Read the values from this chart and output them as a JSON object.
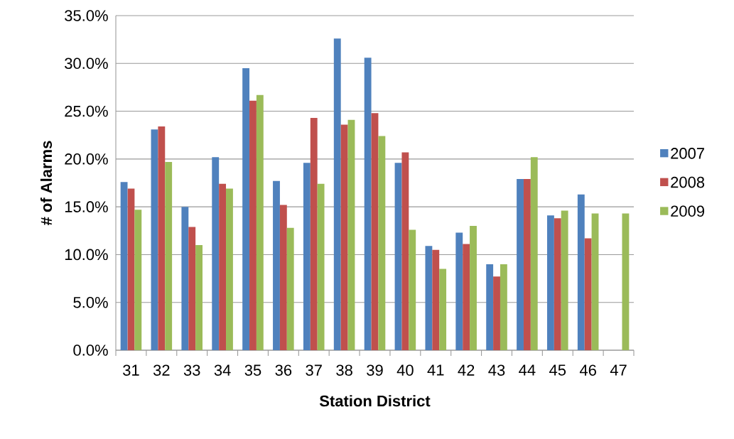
{
  "chart_data": {
    "type": "bar",
    "xlabel": "Station District",
    "ylabel": "# of Alarms",
    "categories": [
      "31",
      "32",
      "33",
      "34",
      "35",
      "36",
      "37",
      "38",
      "39",
      "40",
      "41",
      "42",
      "43",
      "44",
      "45",
      "46",
      "47"
    ],
    "series": [
      {
        "name": "2007",
        "color": "#4f81bd",
        "values": [
          17.6,
          23.1,
          15.0,
          20.2,
          29.5,
          17.7,
          19.6,
          32.6,
          30.6,
          19.6,
          10.9,
          12.3,
          9.0,
          17.9,
          14.1,
          16.3,
          null
        ]
      },
      {
        "name": "2008",
        "color": "#c0504d",
        "values": [
          16.9,
          23.4,
          12.9,
          17.4,
          26.1,
          15.2,
          24.3,
          23.6,
          24.8,
          20.7,
          10.5,
          11.1,
          7.7,
          17.9,
          13.8,
          11.7,
          null
        ]
      },
      {
        "name": "2009",
        "color": "#9bbb59",
        "values": [
          14.7,
          19.7,
          11.0,
          16.9,
          26.7,
          12.8,
          17.4,
          24.1,
          22.4,
          12.6,
          8.5,
          13.0,
          9.0,
          20.2,
          14.6,
          14.3,
          14.3
        ]
      }
    ],
    "ylim": [
      0,
      35
    ],
    "yticks": [
      {
        "value": 0,
        "label": "0.0%"
      },
      {
        "value": 5,
        "label": "5.0%"
      },
      {
        "value": 10,
        "label": "10.0%"
      },
      {
        "value": 15,
        "label": "15.0%"
      },
      {
        "value": 20,
        "label": "20.0%"
      },
      {
        "value": 25,
        "label": "25.0%"
      },
      {
        "value": 30,
        "label": "30.0%"
      },
      {
        "value": 35,
        "label": "35.0%"
      }
    ],
    "grid": "y",
    "legend": "right"
  }
}
